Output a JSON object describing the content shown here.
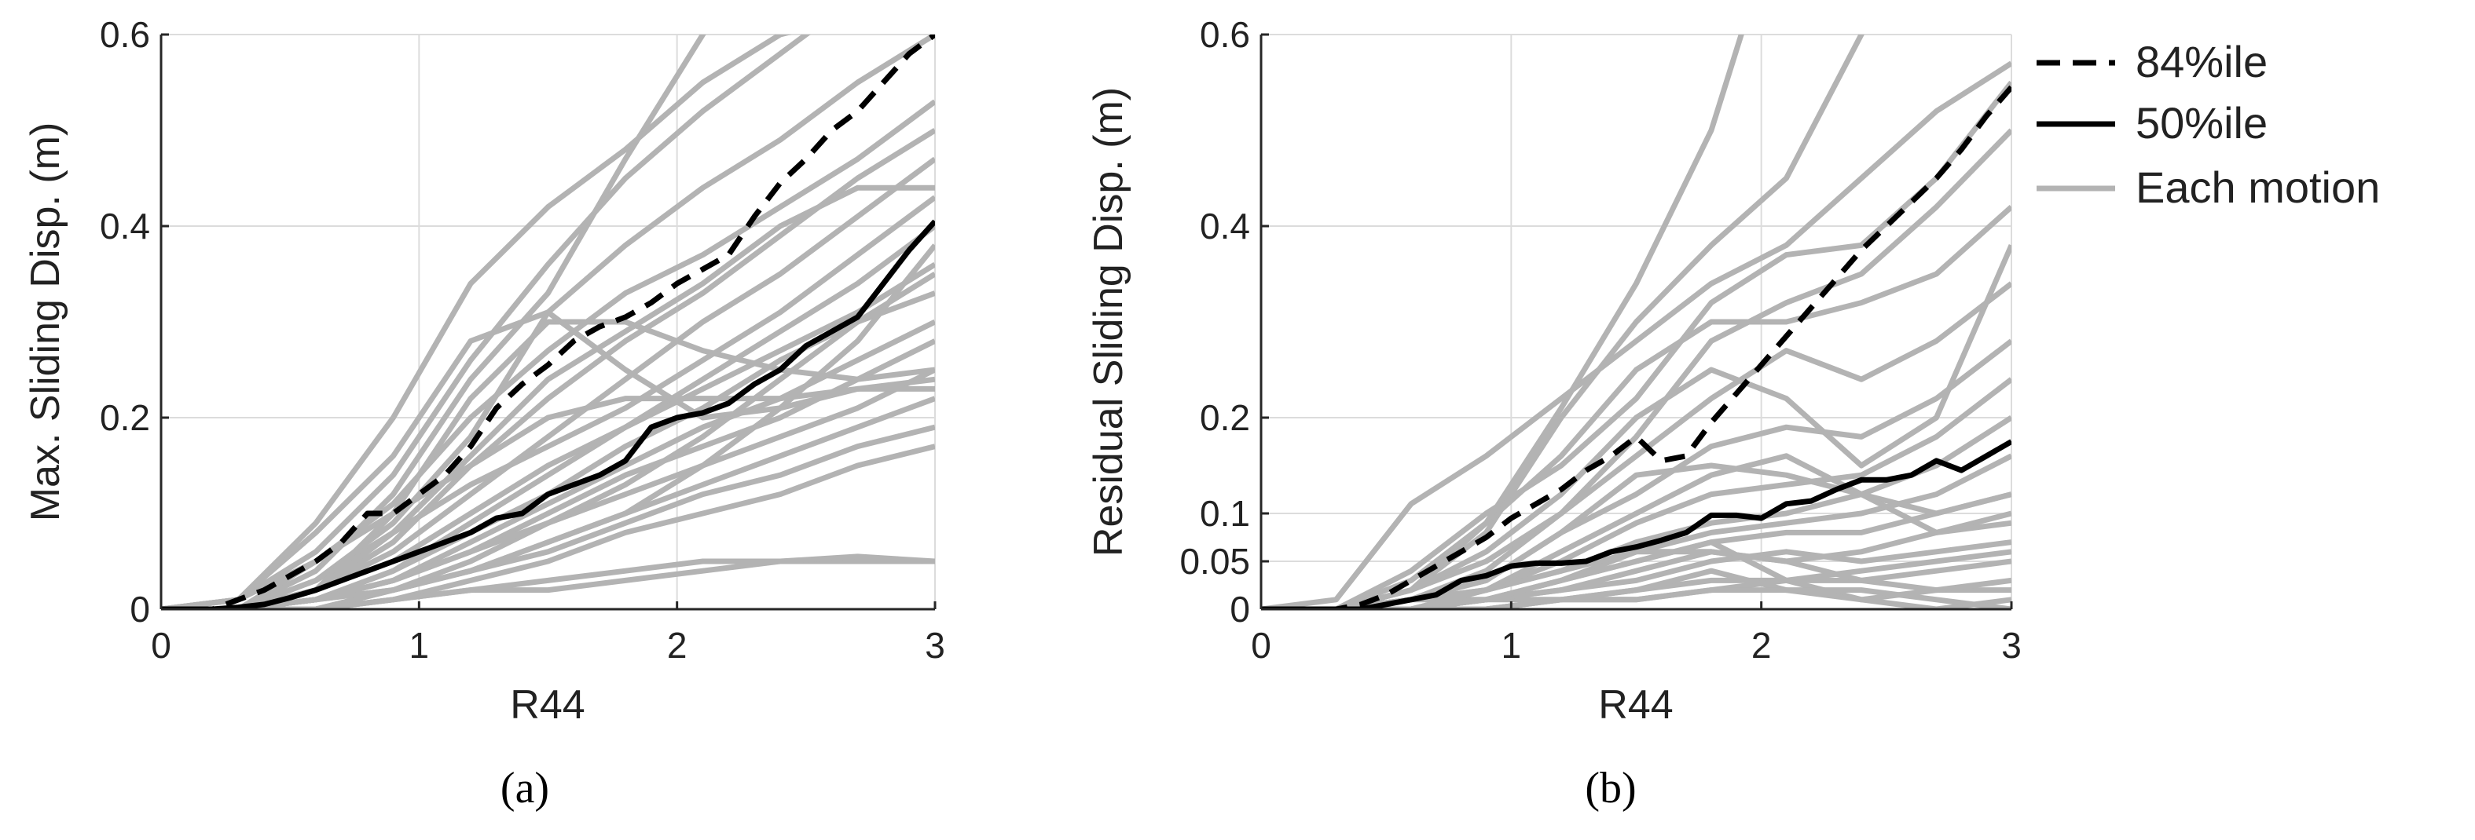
{
  "colors": {
    "each": "#b3b3b3",
    "median": "#000000",
    "p84": "#000000",
    "grid": "#dcdcdc",
    "axis": "#262626"
  },
  "legend": {
    "items": [
      {
        "label": "84%ile",
        "style": "dashed"
      },
      {
        "label": "50%ile",
        "style": "solid"
      },
      {
        "label": "Each motion",
        "style": "gray"
      }
    ]
  },
  "chart_data": [
    {
      "id": "a",
      "type": "line",
      "caption": "(a)",
      "xlabel": "R44",
      "ylabel": "Max. Sliding Disp. (m)",
      "xlim": [
        0,
        3
      ],
      "ylim": [
        0,
        0.6
      ],
      "xticks": [
        0,
        1,
        2,
        3
      ],
      "xtick_labels": [
        "0",
        "1",
        "2",
        "3"
      ],
      "yticks": [
        0,
        0.2,
        0.4,
        0.6
      ],
      "ytick_labels": [
        "0",
        "0.2",
        "0.4",
        "0.6"
      ],
      "grid": true,
      "series": [
        {
          "name": "84%ile",
          "x": [
            0,
            0.2,
            0.3,
            0.4,
            0.5,
            0.6,
            0.7,
            0.8,
            0.9,
            1.0,
            1.1,
            1.2,
            1.3,
            1.4,
            1.5,
            1.6,
            1.7,
            1.8,
            1.9,
            2.0,
            2.1,
            2.2,
            2.3,
            2.4,
            2.5,
            2.6,
            2.7,
            2.8,
            2.9,
            3.0
          ],
          "y": [
            0,
            0,
            0.01,
            0.02,
            0.035,
            0.05,
            0.07,
            0.1,
            0.1,
            0.12,
            0.14,
            0.17,
            0.21,
            0.235,
            0.255,
            0.28,
            0.295,
            0.305,
            0.32,
            0.34,
            0.355,
            0.37,
            0.41,
            0.445,
            0.47,
            0.5,
            0.52,
            0.55,
            0.58,
            0.6
          ]
        },
        {
          "name": "50%ile",
          "x": [
            0,
            0.2,
            0.3,
            0.4,
            0.5,
            0.6,
            0.7,
            0.8,
            0.9,
            1.0,
            1.1,
            1.2,
            1.3,
            1.4,
            1.5,
            1.6,
            1.7,
            1.8,
            1.9,
            2.0,
            2.1,
            2.2,
            2.3,
            2.4,
            2.5,
            2.6,
            2.7,
            2.8,
            2.9,
            3.0
          ],
          "y": [
            0,
            0,
            0.002,
            0.005,
            0.012,
            0.02,
            0.03,
            0.04,
            0.05,
            0.06,
            0.07,
            0.08,
            0.095,
            0.1,
            0.12,
            0.13,
            0.14,
            0.155,
            0.19,
            0.2,
            0.205,
            0.215,
            0.235,
            0.25,
            0.275,
            0.29,
            0.305,
            0.34,
            0.375,
            0.405
          ]
        },
        {
          "name": "Each motion",
          "x": [
            0,
            0.3,
            0.6,
            0.9,
            1.2,
            1.5,
            1.8,
            2.1,
            2.4,
            2.7,
            3.0
          ],
          "lines": [
            [
              0,
              0,
              0.04,
              0.12,
              0.24,
              0.33,
              0.47,
              0.6,
              0.72,
              0.85,
              0.95
            ],
            [
              0,
              0.01,
              0.06,
              0.14,
              0.26,
              0.36,
              0.45,
              0.52,
              0.58,
              0.64,
              0.7
            ],
            [
              0,
              0,
              0.03,
              0.09,
              0.18,
              0.31,
              0.38,
              0.44,
              0.49,
              0.55,
              0.6
            ],
            [
              0,
              0.01,
              0.05,
              0.11,
              0.2,
              0.27,
              0.33,
              0.37,
              0.42,
              0.47,
              0.53
            ],
            [
              0,
              0,
              0.02,
              0.07,
              0.15,
              0.22,
              0.28,
              0.33,
              0.39,
              0.45,
              0.5
            ],
            [
              0,
              0,
              0.02,
              0.06,
              0.12,
              0.18,
              0.24,
              0.3,
              0.35,
              0.41,
              0.47
            ],
            [
              0,
              0,
              0.03,
              0.08,
              0.13,
              0.17,
              0.21,
              0.26,
              0.31,
              0.37,
              0.43
            ],
            [
              0,
              0,
              0.01,
              0.04,
              0.09,
              0.14,
              0.19,
              0.24,
              0.29,
              0.34,
              0.4
            ],
            [
              0,
              0,
              0.02,
              0.05,
              0.1,
              0.15,
              0.19,
              0.23,
              0.27,
              0.31,
              0.36
            ],
            [
              0,
              0,
              0.01,
              0.04,
              0.08,
              0.12,
              0.17,
              0.21,
              0.26,
              0.3,
              0.33
            ],
            [
              0,
              0,
              0.01,
              0.03,
              0.07,
              0.11,
              0.15,
              0.19,
              0.22,
              0.26,
              0.3
            ],
            [
              0,
              0,
              0.01,
              0.03,
              0.06,
              0.1,
              0.14,
              0.17,
              0.2,
              0.24,
              0.28
            ],
            [
              0,
              0,
              0.01,
              0.02,
              0.05,
              0.09,
              0.12,
              0.15,
              0.18,
              0.21,
              0.25
            ],
            [
              0,
              0,
              0,
              0.02,
              0.04,
              0.07,
              0.1,
              0.13,
              0.16,
              0.19,
              0.22
            ],
            [
              0,
              0,
              0,
              0.02,
              0.04,
              0.06,
              0.09,
              0.12,
              0.14,
              0.17,
              0.19
            ],
            [
              0,
              0,
              0,
              0.01,
              0.03,
              0.05,
              0.08,
              0.1,
              0.12,
              0.15,
              0.17
            ],
            [
              0,
              0,
              0.02,
              0.1,
              0.22,
              0.3,
              0.3,
              0.27,
              0.25,
              0.24,
              0.25
            ],
            [
              0,
              0,
              0.05,
              0.1,
              0.15,
              0.2,
              0.22,
              0.22,
              0.22,
              0.23,
              0.23
            ],
            [
              0,
              0.01,
              0.08,
              0.16,
              0.28,
              0.31,
              0.25,
              0.2,
              0.21,
              0.23,
              0.24
            ],
            [
              0,
              0,
              0.01,
              0.03,
              0.06,
              0.09,
              0.13,
              0.18,
              0.24,
              0.3,
              0.35
            ],
            [
              0,
              0,
              0.01,
              0.02,
              0.04,
              0.07,
              0.1,
              0.15,
              0.21,
              0.28,
              0.38
            ],
            [
              0,
              0,
              0,
              0.01,
              0.02,
              0.02,
              0.03,
              0.04,
              0.05,
              0.05,
              0.05
            ],
            [
              0,
              0,
              0,
              0.01,
              0.02,
              0.03,
              0.04,
              0.05,
              0.05,
              0.055,
              0.05
            ],
            [
              0,
              0.01,
              0.09,
              0.2,
              0.34,
              0.42,
              0.48,
              0.55,
              0.6,
              0.62,
              0.62
            ],
            [
              0,
              0,
              0.02,
              0.08,
              0.16,
              0.24,
              0.29,
              0.34,
              0.4,
              0.44,
              0.44
            ]
          ]
        }
      ]
    },
    {
      "id": "b",
      "type": "line",
      "caption": "(b)",
      "xlabel": "R44",
      "ylabel": "Residual Sliding Disp. (m)",
      "xlim": [
        0,
        3
      ],
      "ylim": [
        0,
        0.6
      ],
      "xticks": [
        0,
        1,
        2,
        3
      ],
      "xtick_labels": [
        "0",
        "1",
        "2",
        "3"
      ],
      "yticks": [
        0,
        0.05,
        0.1,
        0.2,
        0.4,
        0.6
      ],
      "ytick_labels": [
        "0",
        "0.05",
        "0.1",
        "0.2",
        "0.4",
        "0.6"
      ],
      "grid": true,
      "series": [
        {
          "name": "84%ile",
          "x": [
            0,
            0.3,
            0.4,
            0.5,
            0.6,
            0.7,
            0.8,
            0.9,
            1.0,
            1.1,
            1.2,
            1.3,
            1.4,
            1.5,
            1.6,
            1.7,
            1.8,
            1.9,
            2.0,
            2.1,
            2.2,
            2.3,
            2.4,
            2.5,
            2.6,
            2.7,
            2.8,
            2.9,
            3.0
          ],
          "y": [
            0,
            0,
            0.005,
            0.015,
            0.03,
            0.045,
            0.06,
            0.075,
            0.095,
            0.11,
            0.125,
            0.145,
            0.16,
            0.18,
            0.155,
            0.16,
            0.195,
            0.225,
            0.255,
            0.285,
            0.315,
            0.345,
            0.375,
            0.4,
            0.425,
            0.45,
            0.48,
            0.515,
            0.545
          ]
        },
        {
          "name": "50%ile",
          "x": [
            0,
            0.3,
            0.4,
            0.5,
            0.6,
            0.7,
            0.8,
            0.9,
            1.0,
            1.1,
            1.2,
            1.3,
            1.4,
            1.5,
            1.6,
            1.7,
            1.8,
            1.9,
            2.0,
            2.1,
            2.2,
            2.3,
            2.4,
            2.5,
            2.6,
            2.7,
            2.8,
            2.9,
            3.0
          ],
          "y": [
            0,
            0,
            0,
            0.005,
            0.01,
            0.015,
            0.03,
            0.035,
            0.045,
            0.048,
            0.048,
            0.05,
            0.06,
            0.065,
            0.072,
            0.08,
            0.098,
            0.098,
            0.095,
            0.11,
            0.113,
            0.125,
            0.135,
            0.135,
            0.14,
            0.155,
            0.145,
            0.16,
            0.175
          ]
        },
        {
          "name": "Each motion",
          "x": [
            0,
            0.3,
            0.6,
            0.9,
            1.2,
            1.5,
            1.8,
            2.1,
            2.4,
            2.7,
            3.0
          ],
          "lines": [
            [
              0,
              0,
              0.02,
              0.08,
              0.2,
              0.3,
              0.38,
              0.45,
              0.6,
              0.75,
              0.85
            ],
            [
              0,
              0.01,
              0.11,
              0.16,
              0.22,
              0.28,
              0.34,
              0.38,
              0.45,
              0.52,
              0.57
            ],
            [
              0,
              0,
              0.04,
              0.1,
              0.15,
              0.22,
              0.32,
              0.37,
              0.38,
              0.45,
              0.55
            ],
            [
              0,
              0,
              0.02,
              0.05,
              0.1,
              0.18,
              0.28,
              0.32,
              0.35,
              0.42,
              0.5
            ],
            [
              0,
              0,
              0.03,
              0.09,
              0.16,
              0.25,
              0.3,
              0.3,
              0.32,
              0.35,
              0.42
            ],
            [
              0,
              0,
              0.02,
              0.06,
              0.12,
              0.2,
              0.25,
              0.22,
              0.15,
              0.2,
              0.38
            ],
            [
              0,
              0,
              0.01,
              0.04,
              0.1,
              0.16,
              0.22,
              0.27,
              0.24,
              0.28,
              0.34
            ],
            [
              0,
              0,
              0.01,
              0.03,
              0.08,
              0.12,
              0.17,
              0.19,
              0.18,
              0.22,
              0.28
            ],
            [
              0,
              0,
              0.01,
              0.02,
              0.05,
              0.09,
              0.12,
              0.13,
              0.14,
              0.18,
              0.24
            ],
            [
              0,
              0,
              0,
              0.02,
              0.04,
              0.07,
              0.09,
              0.1,
              0.12,
              0.15,
              0.2
            ],
            [
              0,
              0,
              0,
              0.01,
              0.03,
              0.06,
              0.08,
              0.09,
              0.1,
              0.12,
              0.16
            ],
            [
              0,
              0,
              0,
              0.01,
              0.03,
              0.05,
              0.07,
              0.08,
              0.08,
              0.1,
              0.12
            ],
            [
              0,
              0,
              0.01,
              0.02,
              0.04,
              0.06,
              0.06,
              0.05,
              0.06,
              0.08,
              0.1
            ],
            [
              0,
              0,
              0,
              0.01,
              0.02,
              0.03,
              0.05,
              0.06,
              0.05,
              0.06,
              0.07
            ],
            [
              0,
              0,
              0,
              0.01,
              0.01,
              0.02,
              0.03,
              0.03,
              0.04,
              0.05,
              0.06
            ],
            [
              0,
              0,
              0,
              0,
              0.01,
              0.01,
              0.02,
              0.03,
              0.03,
              0.04,
              0.05
            ],
            [
              0,
              0,
              0.01,
              0.01,
              0.02,
              0.04,
              0.06,
              0.05,
              0.03,
              0.02,
              0.02
            ],
            [
              0,
              0,
              0,
              0.01,
              0.03,
              0.05,
              0.07,
              0.03,
              0.01,
              0,
              0.01
            ],
            [
              0,
              0,
              0,
              0,
              0.01,
              0.02,
              0.04,
              0.02,
              0.01,
              0.02,
              0.03
            ],
            [
              0,
              0,
              0,
              0,
              0.01,
              0.01,
              0.02,
              0.02,
              0.02,
              0.01,
              0
            ],
            [
              0,
              0,
              0.01,
              0.03,
              0.08,
              0.14,
              0.15,
              0.14,
              0.12,
              0.1,
              0.12
            ],
            [
              0,
              0,
              0,
              0.02,
              0.06,
              0.1,
              0.14,
              0.16,
              0.12,
              0.08,
              0.09
            ],
            [
              0,
              0,
              0.02,
              0.09,
              0.21,
              0.34,
              0.5,
              0.75,
              0.95,
              1.0,
              1.0
            ]
          ]
        }
      ]
    }
  ]
}
